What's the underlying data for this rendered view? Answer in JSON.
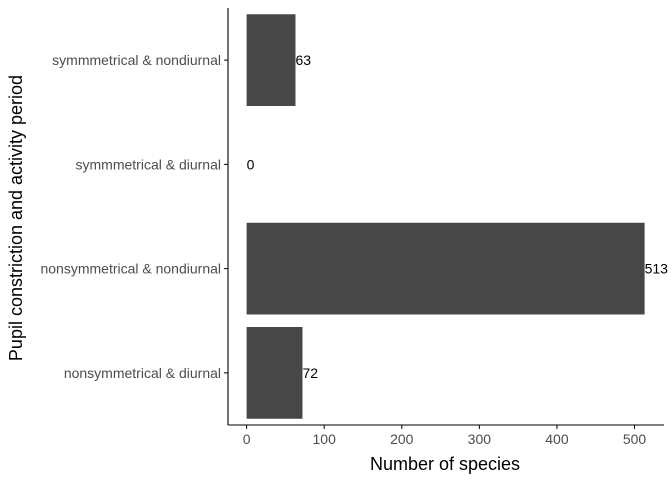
{
  "chart_data": {
    "type": "bar",
    "orientation": "horizontal",
    "categories": [
      "symmmetrical & nondiurnal",
      "symmmetrical & diurnal",
      "nonsymmetrical & nondiurnal",
      "nonsymmetrical & diurnal"
    ],
    "values": [
      63,
      0,
      513,
      72
    ],
    "data_labels": [
      "63",
      "0",
      "513",
      "72"
    ],
    "xlabel": "Number of species",
    "ylabel": "Pupil constriction and activity period",
    "xlim": [
      -24,
      538
    ],
    "x_ticks": [
      0,
      100,
      200,
      300,
      400,
      500
    ],
    "x_tick_labels": [
      "0",
      "100",
      "200",
      "300",
      "400",
      "500"
    ],
    "grid": false,
    "legend": "none",
    "bar_color": "#474747",
    "axis_color": "#000000",
    "tick_label_color": "#4d4d4d"
  }
}
